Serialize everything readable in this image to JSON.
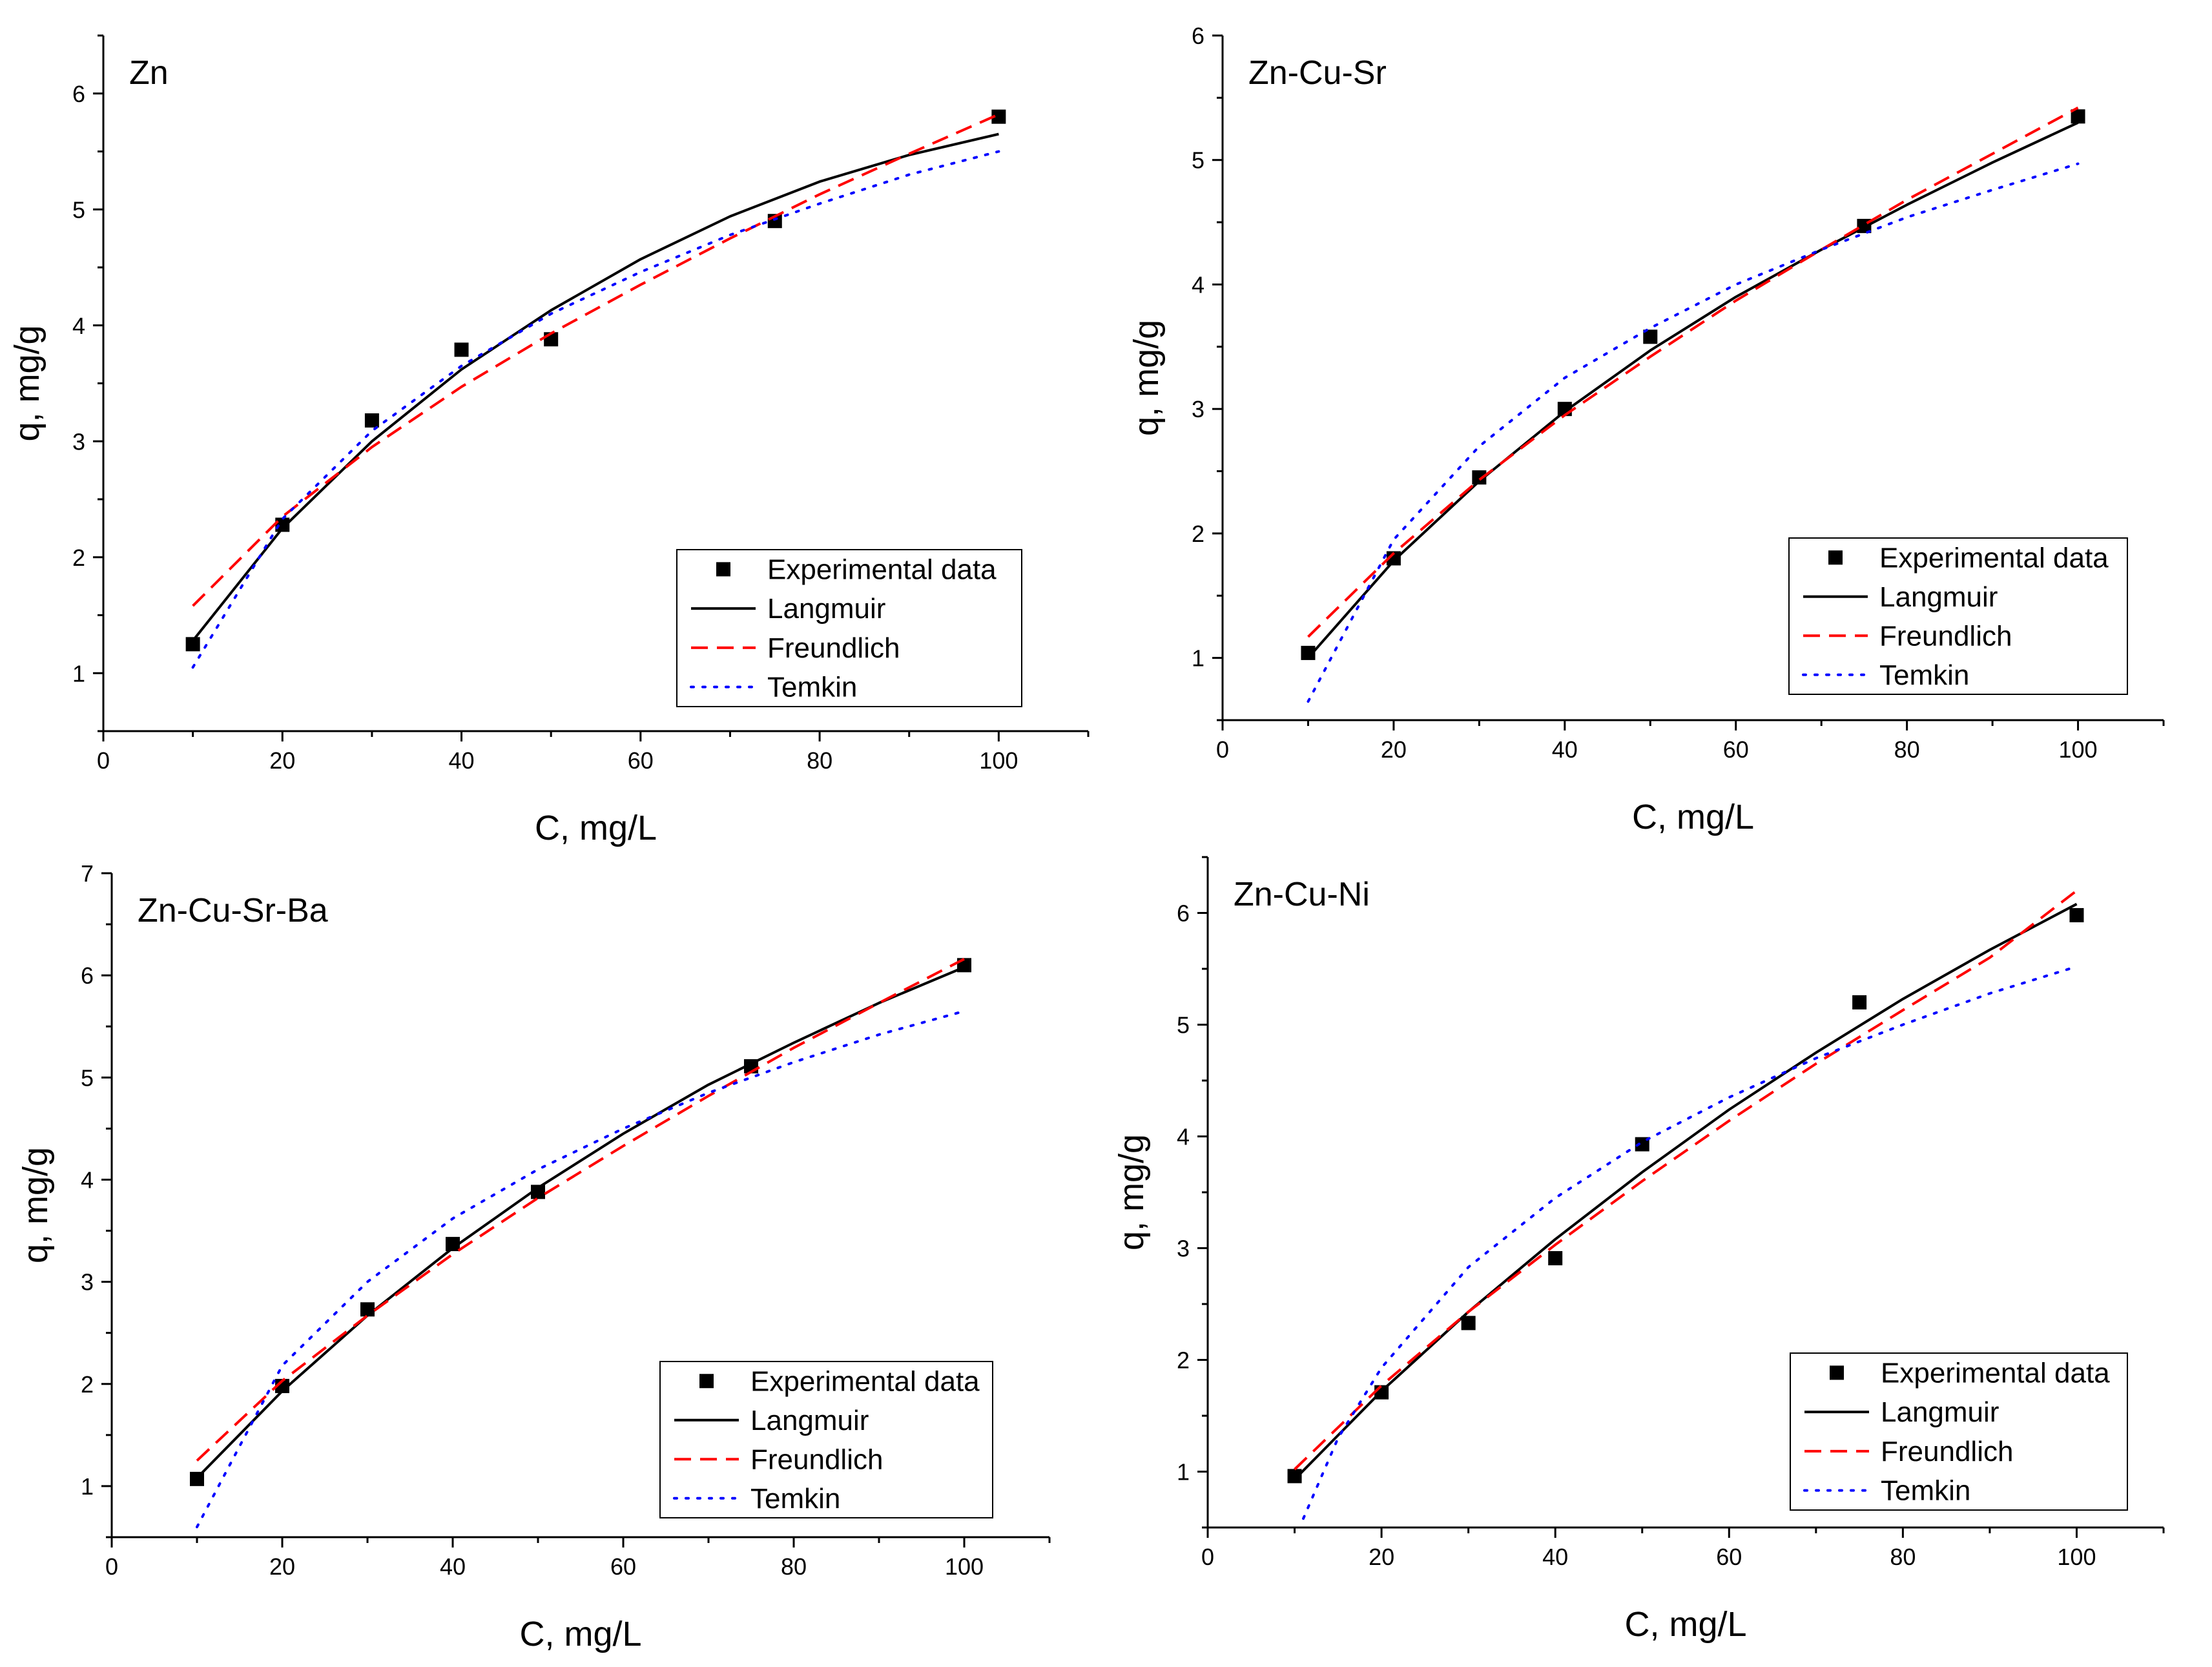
{
  "chart_data": [
    {
      "type": "scatter",
      "title": "Zn",
      "xlabel": "C, mg/L",
      "ylabel": "q, mg/g",
      "xlim": [
        0,
        110
      ],
      "ylim": [
        0.5,
        6.5
      ],
      "xticks": [
        0,
        20,
        40,
        60,
        80,
        100
      ],
      "yticks": [
        1,
        2,
        3,
        4,
        5,
        6
      ],
      "legend_position": "bottom-right",
      "series": [
        {
          "name": "Experimental data",
          "kind": "markers",
          "color": "#000000",
          "x": [
            10,
            20,
            30,
            40,
            50,
            75,
            100
          ],
          "y": [
            1.25,
            2.28,
            3.18,
            3.79,
            3.88,
            4.9,
            5.8
          ]
        },
        {
          "name": "Langmuir",
          "kind": "solid",
          "color": "#000000",
          "x": [
            10,
            20,
            30,
            40,
            50,
            60,
            70,
            80,
            90,
            100
          ],
          "y": [
            1.28,
            2.25,
            3.0,
            3.62,
            4.13,
            4.57,
            4.94,
            5.24,
            5.47,
            5.65
          ]
        },
        {
          "name": "Freundlich",
          "kind": "dashed",
          "color": "#ff0000",
          "x": [
            10,
            20,
            30,
            40,
            50,
            60,
            70,
            80,
            90,
            100
          ],
          "y": [
            1.58,
            2.35,
            2.95,
            3.47,
            3.93,
            4.35,
            4.75,
            5.13,
            5.48,
            5.82
          ]
        },
        {
          "name": "Temkin",
          "kind": "dotted",
          "color": "#0000ff",
          "x": [
            10,
            20,
            30,
            40,
            50,
            60,
            70,
            80,
            90,
            100
          ],
          "y": [
            1.05,
            2.33,
            3.09,
            3.65,
            4.1,
            4.46,
            4.78,
            5.05,
            5.3,
            5.5
          ]
        }
      ]
    },
    {
      "type": "scatter",
      "title": "Zn-Cu-Sr",
      "xlabel": "C, mg/L",
      "ylabel": "q, mg/g",
      "xlim": [
        0,
        110
      ],
      "ylim": [
        0.5,
        6
      ],
      "xticks": [
        0,
        20,
        40,
        60,
        80,
        100
      ],
      "yticks": [
        1,
        2,
        3,
        4,
        5,
        6
      ],
      "legend_position": "bottom-right",
      "series": [
        {
          "name": "Experimental data",
          "kind": "markers",
          "color": "#000000",
          "x": [
            10,
            20,
            30,
            40,
            50,
            75,
            100
          ],
          "y": [
            1.04,
            1.8,
            2.45,
            3.0,
            3.58,
            4.47,
            5.35
          ]
        },
        {
          "name": "Langmuir",
          "kind": "solid",
          "color": "#000000",
          "x": [
            10,
            20,
            30,
            40,
            50,
            60,
            70,
            80,
            90,
            100
          ],
          "y": [
            1.0,
            1.78,
            2.42,
            2.98,
            3.47,
            3.9,
            4.28,
            4.64,
            4.98,
            5.3
          ]
        },
        {
          "name": "Freundlich",
          "kind": "dashed",
          "color": "#ff0000",
          "x": [
            10,
            20,
            30,
            40,
            50,
            60,
            70,
            80,
            90,
            100
          ],
          "y": [
            1.17,
            1.84,
            2.43,
            2.95,
            3.42,
            3.87,
            4.28,
            4.68,
            5.05,
            5.42
          ]
        },
        {
          "name": "Temkin",
          "kind": "dotted",
          "color": "#0000ff",
          "x": [
            10,
            20,
            30,
            40,
            50,
            60,
            70,
            80,
            90,
            100
          ],
          "y": [
            0.65,
            1.95,
            2.7,
            3.25,
            3.65,
            4.0,
            4.28,
            4.54,
            4.76,
            4.97
          ]
        }
      ]
    },
    {
      "type": "scatter",
      "title": "Zn-Cu-Sr-Ba",
      "xlabel": "C, mg/L",
      "ylabel": "q, mg/g",
      "xlim": [
        0,
        110
      ],
      "ylim": [
        0.5,
        7
      ],
      "xticks": [
        0,
        20,
        40,
        60,
        80,
        100
      ],
      "yticks": [
        1,
        2,
        3,
        4,
        5,
        6,
        7
      ],
      "legend_position": "bottom-right",
      "series": [
        {
          "name": "Experimental data",
          "kind": "markers",
          "color": "#000000",
          "x": [
            10,
            20,
            30,
            40,
            50,
            75,
            100
          ],
          "y": [
            1.07,
            1.98,
            2.73,
            3.37,
            3.88,
            5.11,
            6.1
          ]
        },
        {
          "name": "Langmuir",
          "kind": "solid",
          "color": "#000000",
          "x": [
            10,
            20,
            30,
            40,
            50,
            60,
            70,
            80,
            90,
            100
          ],
          "y": [
            1.08,
            1.93,
            2.67,
            3.33,
            3.92,
            4.45,
            4.93,
            5.34,
            5.73,
            6.08
          ]
        },
        {
          "name": "Freundlich",
          "kind": "dashed",
          "color": "#ff0000",
          "x": [
            10,
            20,
            30,
            40,
            50,
            60,
            70,
            80,
            90,
            100
          ],
          "y": [
            1.25,
            2.03,
            2.67,
            3.27,
            3.82,
            4.33,
            4.82,
            5.29,
            5.73,
            6.16
          ]
        },
        {
          "name": "Temkin",
          "kind": "dotted",
          "color": "#0000ff",
          "x": [
            10,
            20,
            30,
            40,
            50,
            60,
            70,
            80,
            90,
            100
          ],
          "y": [
            0.6,
            2.18,
            3.0,
            3.62,
            4.1,
            4.5,
            4.85,
            5.15,
            5.42,
            5.65
          ]
        }
      ]
    },
    {
      "type": "scatter",
      "title": "Zn-Cu-Ni",
      "xlabel": "C, mg/L",
      "ylabel": "q, mg/g",
      "xlim": [
        0,
        110
      ],
      "ylim": [
        0.5,
        6.5
      ],
      "xticks": [
        0,
        20,
        40,
        60,
        80,
        100
      ],
      "yticks": [
        1,
        2,
        3,
        4,
        5,
        6
      ],
      "legend_position": "bottom-right",
      "series": [
        {
          "name": "Experimental data",
          "kind": "markers",
          "color": "#000000",
          "x": [
            10,
            20,
            30,
            40,
            50,
            75,
            100
          ],
          "y": [
            0.96,
            1.71,
            2.33,
            2.91,
            3.93,
            5.2,
            5.98
          ]
        },
        {
          "name": "Langmuir",
          "kind": "solid",
          "color": "#000000",
          "x": [
            10,
            20,
            30,
            40,
            50,
            60,
            70,
            80,
            90,
            100
          ],
          "y": [
            0.93,
            1.72,
            2.43,
            3.08,
            3.68,
            4.24,
            4.75,
            5.23,
            5.67,
            6.08
          ]
        },
        {
          "name": "Freundlich",
          "kind": "dashed",
          "color": "#ff0000",
          "x": [
            10,
            20,
            30,
            40,
            50,
            60,
            70,
            80,
            90,
            100
          ],
          "y": [
            1.02,
            1.77,
            2.43,
            3.03,
            3.6,
            4.14,
            4.65,
            5.13,
            5.6,
            6.2
          ]
        },
        {
          "name": "Temkin",
          "kind": "dotted",
          "color": "#0000ff",
          "x": [
            11,
            15,
            20,
            30,
            40,
            50,
            60,
            70,
            80,
            90,
            100
          ],
          "y": [
            0.58,
            1.3,
            1.93,
            2.83,
            3.45,
            3.95,
            4.35,
            4.7,
            5.0,
            5.28,
            5.52
          ]
        }
      ]
    }
  ]
}
